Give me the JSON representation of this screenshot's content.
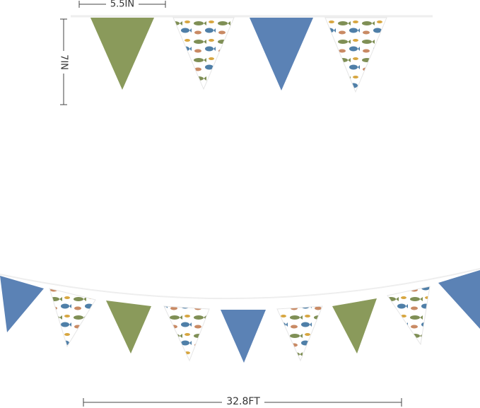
{
  "dimensions": {
    "width_label": "5.5IN",
    "height_label": "7IN",
    "length_label": "32.8FT"
  }
}
